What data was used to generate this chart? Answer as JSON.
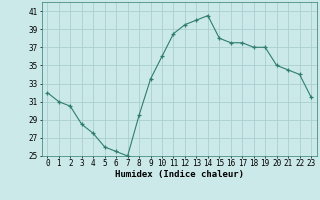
{
  "x": [
    0,
    1,
    2,
    3,
    4,
    5,
    6,
    7,
    8,
    9,
    10,
    11,
    12,
    13,
    14,
    15,
    16,
    17,
    18,
    19,
    20,
    21,
    22,
    23
  ],
  "y": [
    32,
    31,
    30.5,
    28.5,
    27.5,
    26,
    25.5,
    25,
    29.5,
    33.5,
    36,
    38.5,
    39.5,
    40,
    40.5,
    38,
    37.5,
    37.5,
    37,
    37,
    35,
    34.5,
    34,
    31.5
  ],
  "line_color": "#2e7d6e",
  "marker": "+",
  "bg_color": "#cce9e9",
  "grid_color": "#aacfcf",
  "xlabel": "Humidex (Indice chaleur)",
  "ylim": [
    25,
    42
  ],
  "xlim": [
    -0.5,
    23.5
  ],
  "yticks": [
    25,
    27,
    29,
    31,
    33,
    35,
    37,
    39,
    41
  ],
  "xtick_labels": [
    "0",
    "1",
    "2",
    "3",
    "4",
    "5",
    "6",
    "7",
    "8",
    "9",
    "10",
    "11",
    "12",
    "13",
    "14",
    "15",
    "16",
    "17",
    "18",
    "19",
    "20",
    "21",
    "22",
    "23"
  ],
  "label_fontsize": 6.5,
  "tick_fontsize": 5.5
}
